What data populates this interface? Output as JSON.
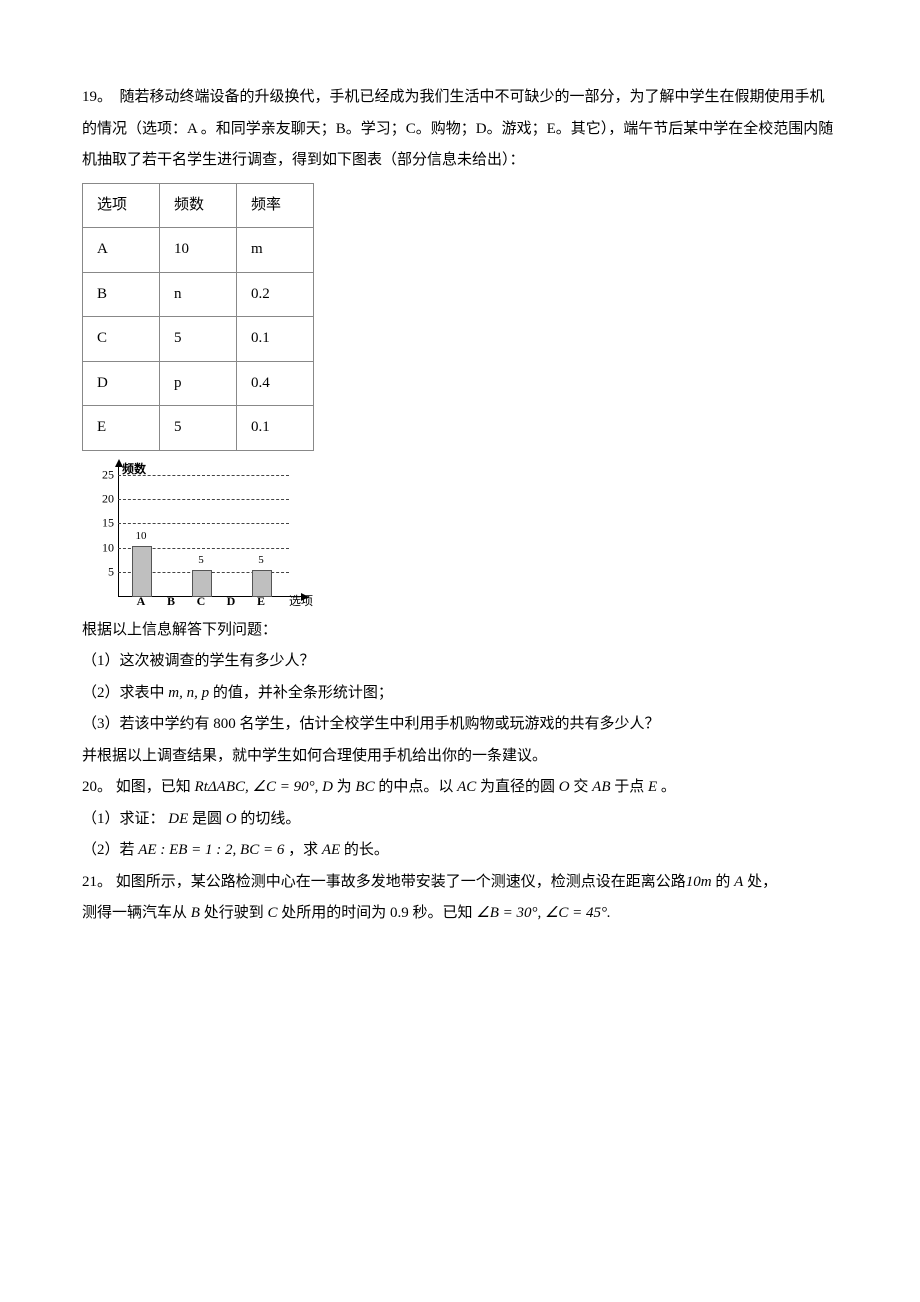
{
  "q19": {
    "num": "19。",
    "intro": "随若移动终端设备的升级换代，手机已经成为我们生活中不可缺少的一部分，为了解中学生在假期使用手机的情况（选项：A 。和同学亲友聊天；B。学习；C。购物；D。游戏；E。其它），端午节后某中学在全校范围内随机抽取了若干名学生进行调查，得到如下图表（部分信息未给出）：",
    "table": {
      "headers": [
        "选项",
        "频数",
        "频率"
      ],
      "rows": [
        [
          "A",
          "10",
          "m"
        ],
        [
          "B",
          "n",
          "0.2"
        ],
        [
          "C",
          "5",
          "0.1"
        ],
        [
          "D",
          "p",
          "0.4"
        ],
        [
          "E",
          "5",
          "0.1"
        ]
      ]
    },
    "chart": {
      "ylabel": "频数",
      "xlabel": "选项",
      "ymax": 25,
      "ytick_step": 5,
      "yticks": [
        "5",
        "10",
        "15",
        "20",
        "25"
      ],
      "categories": [
        "A",
        "B",
        "C",
        "D",
        "E"
      ],
      "values": [
        10,
        null,
        5,
        null,
        5
      ],
      "shown_values": [
        "10",
        "",
        "5",
        "",
        "5"
      ],
      "bar_color": "#bfbfbf",
      "grid_color": "#444444",
      "axis_color": "#000000"
    },
    "after_chart": "根据以上信息解答下列问题：",
    "sub1": "（1）这次被调查的学生有多少人？",
    "sub2_a": "（2）求表中",
    "sub2_m": "m, n, p",
    "sub2_b": " 的值，并补全条形统计图；",
    "sub3_a": "（3）若该中学约有",
    "sub3_n": "800",
    "sub3_b": "名学生，估计全校学生中利用手机购物或玩游戏的共有多少人？",
    "sub3_c": "并根据以上调查结果，就中学生如何合理使用手机给出你的一条建议。"
  },
  "q20": {
    "num": "20。",
    "a": "如图，已知",
    "m1": "RtΔABC, ∠C = 90°, D",
    "b": "为",
    "m2": "BC",
    "c": "的中点。以",
    "m3": "AC",
    "d": "为直径的圆",
    "m4": "O",
    "e": "交",
    "m5": "AB",
    "f": "于点",
    "m6": "E",
    "g": "。",
    "s1a": "（1）求证：",
    "s1m": "DE",
    "s1b": "是圆",
    "s1m2": "O",
    "s1c": "的切线。",
    "s2a": "（2）若",
    "s2m1": "AE : EB = 1 : 2, BC = 6",
    "s2b": "，求",
    "s2m2": "AE",
    "s2c": "的长。"
  },
  "q21": {
    "num": "21。",
    "a": "如图所示，某公路检测中心在一事故多发地带安装了一个测速仪，检测点设在距离公路",
    "m1": "10m",
    "b": "的",
    "m2": "A",
    "c": "处，",
    "d": "测得一辆汽车从",
    "m3": "B",
    "e": "处行驶到",
    "m4": "C",
    "f": "处所用的时间为",
    "m5": "0.9",
    "g": "秒。已知",
    "m6": "∠B = 30°, ∠C = 45°."
  }
}
